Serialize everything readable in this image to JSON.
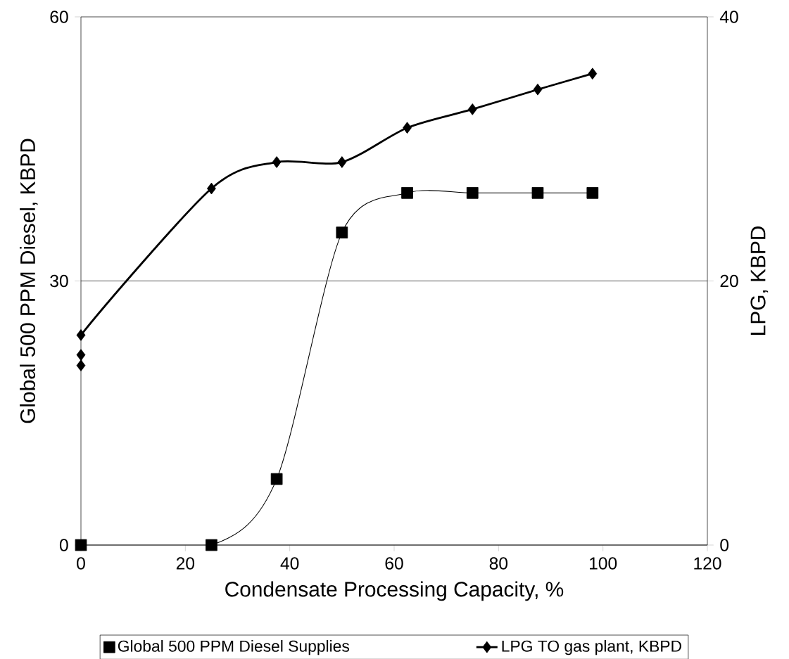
{
  "chart_data": {
    "type": "line",
    "xlabel": "Condensate Processing Capacity, %",
    "ylabel": "Global 500 PPM Diesel, KBPD",
    "y2label": "LPG, KBPD",
    "xlim": [
      0,
      120
    ],
    "xticks": [
      0,
      20,
      40,
      60,
      80,
      100,
      120
    ],
    "ylim": [
      0,
      60
    ],
    "yticks": [
      0,
      30,
      60
    ],
    "y2lim": [
      0,
      40
    ],
    "y2ticks": [
      0,
      20,
      40
    ],
    "grid": "y",
    "legend": "bottom",
    "series": [
      {
        "name": "Global 500 PPM Diesel Supplies",
        "color": "#000000",
        "marker": "square",
        "x": [
          0,
          25,
          37.5,
          50,
          62.5,
          75,
          87.5,
          98
        ],
        "values": [
          0,
          0,
          7.5,
          35.5,
          40,
          40,
          40,
          40
        ]
      },
      {
        "name": "LPG TO gas plant, KBPD",
        "color": "#000000",
        "marker": "diamond",
        "axis": "y2",
        "x": [
          0,
          0,
          0,
          25,
          37.5,
          50,
          62.5,
          75,
          87.5,
          98
        ],
        "values": [
          13.6,
          14.4,
          15.9,
          27.0,
          29.0,
          29.0,
          31.6,
          33.0,
          34.5,
          35.7
        ]
      }
    ]
  }
}
